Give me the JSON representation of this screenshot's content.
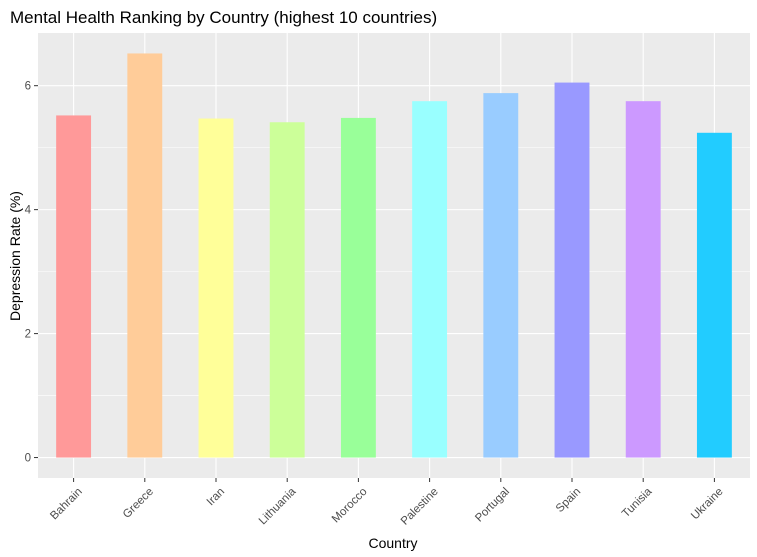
{
  "chart_data": {
    "type": "bar",
    "title": "Mental Health Ranking by Country (highest 10 countries)",
    "xlabel": "Country",
    "ylabel": "Depression Rate (%)",
    "categories": [
      "Bahrain",
      "Greece",
      "Iran",
      "Lithuania",
      "Morocco",
      "Palestine",
      "Portugal",
      "Spain",
      "Tunisia",
      "Ukraine"
    ],
    "values": [
      5.52,
      6.52,
      5.47,
      5.41,
      5.48,
      5.75,
      5.88,
      6.05,
      5.75,
      5.24
    ],
    "colors": [
      "#FF9999",
      "#FFCC99",
      "#FFFF99",
      "#CCFF99",
      "#99FF99",
      "#99FFFF",
      "#99CCFF",
      "#9999FF",
      "#CC99FF",
      "#22CCFF"
    ],
    "yticks": [
      0,
      2,
      4,
      6
    ],
    "ylim": [
      -0.33,
      6.85
    ],
    "grid": true,
    "legend": "none",
    "panel_background": "#EBEBEB",
    "gridline_color": "#FFFFFF"
  }
}
